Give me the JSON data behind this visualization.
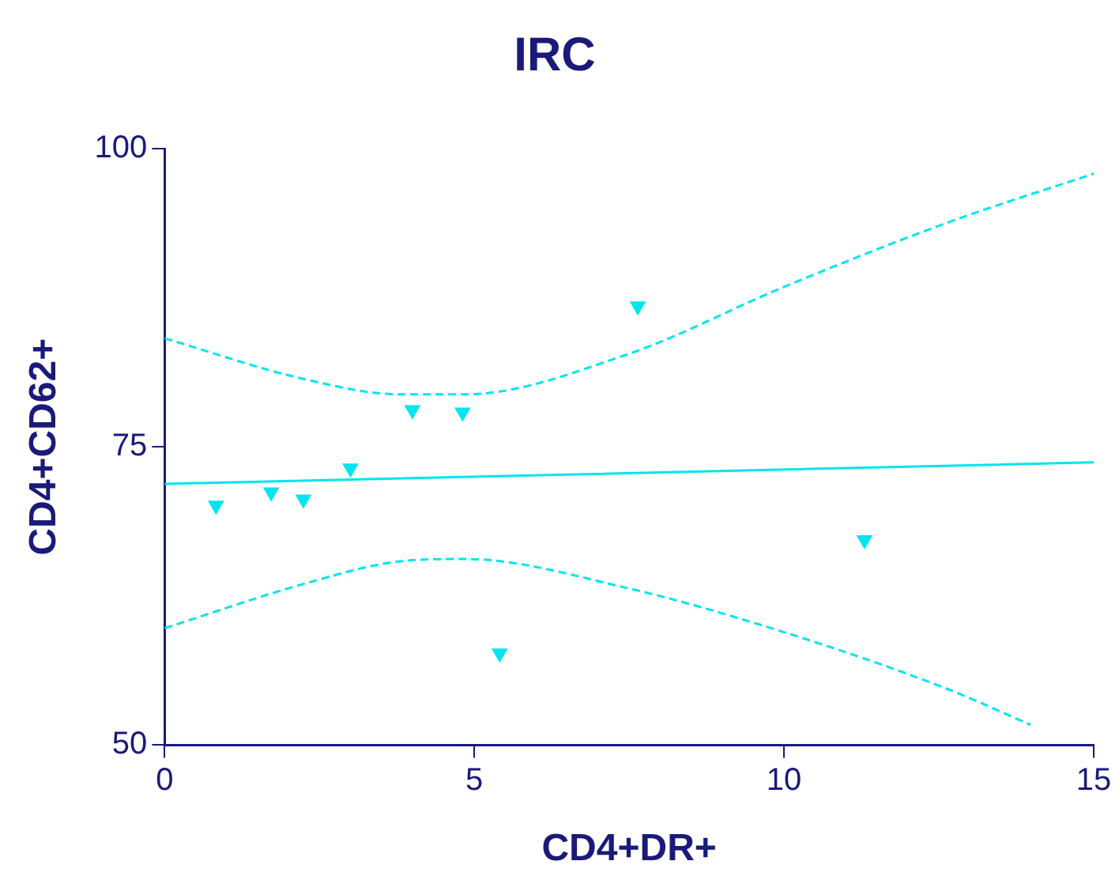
{
  "chart_data": {
    "type": "scatter",
    "title": "IRC",
    "xlabel": "CD4+DR+",
    "ylabel": "CD4+CD62+",
    "xlim": [
      0,
      15
    ],
    "xticks": [
      0,
      5,
      10,
      15
    ],
    "ylim": [
      50,
      100
    ],
    "yticks": [
      50,
      75,
      100
    ],
    "grid": false,
    "legend": false,
    "series": [
      {
        "color": "#00e5ee",
        "marker": "triangle",
        "x": [
          0.83,
          1.72,
          2.24,
          3.0,
          4.0,
          4.81,
          5.41,
          7.64,
          11.3
        ],
        "values": [
          70.1,
          71.2,
          70.6,
          73.2,
          78.1,
          77.9,
          57.7,
          86.8,
          67.2
        ]
      },
      {
        "type": "line",
        "color": "#00e5ee",
        "marker": "none",
        "line_style": "solid",
        "x": [
          0,
          15
        ],
        "values": [
          71.9,
          73.7
        ]
      },
      {
        "type": "line",
        "color": "#00e5ee",
        "marker": "none",
        "line_style": "dashed",
        "x": [
          0,
          2.24,
          3.8,
          4.84,
          7.44,
          10.04,
          12.64,
          15
        ],
        "values": [
          84.1,
          80.7,
          79.4,
          79.4,
          82.7,
          88.5,
          93.8,
          97.9
        ]
      },
      {
        "type": "line",
        "color": "#00e5ee",
        "marker": "none",
        "line_style": "dashed",
        "x": [
          0,
          2.24,
          3.8,
          4.84,
          7.44,
          10.04,
          12.64,
          13.98
        ],
        "values": [
          59.8,
          63.5,
          65.4,
          65.6,
          63.2,
          59.4,
          54.7,
          51.7
        ]
      }
    ]
  }
}
